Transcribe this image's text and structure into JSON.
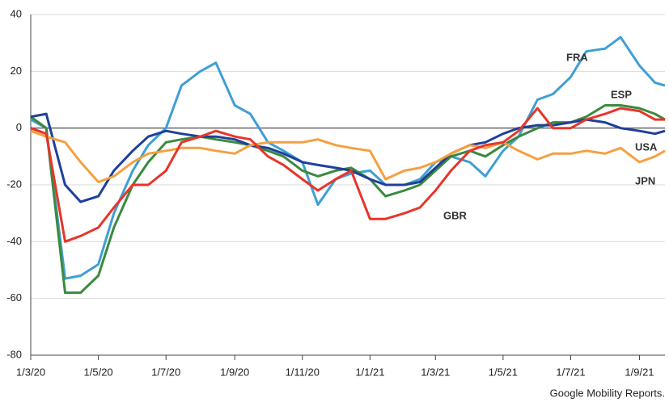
{
  "chart_data": {
    "type": "line",
    "source": "Google Mobility Reports.",
    "x": [
      "1/3/20",
      "15/3/20",
      "1/4/20",
      "15/4/20",
      "1/5/20",
      "15/5/20",
      "1/6/20",
      "15/6/20",
      "1/7/20",
      "15/7/20",
      "1/8/20",
      "15/8/20",
      "1/9/20",
      "15/9/20",
      "1/10/20",
      "15/10/20",
      "1/11/20",
      "15/11/20",
      "1/12/20",
      "15/12/20",
      "1/1/21",
      "15/1/21",
      "1/2/21",
      "15/2/21",
      "1/3/21",
      "15/3/21",
      "1/4/21",
      "15/4/21",
      "1/5/21",
      "15/5/21",
      "1/6/21",
      "15/6/21",
      "1/7/21",
      "15/7/21",
      "1/8/21",
      "15/8/21",
      "1/9/21",
      "15/9/21",
      "24/9/21"
    ],
    "xlim": [
      "1/3/20",
      "24/9/21"
    ],
    "xticks": [
      "1/3/20",
      "1/5/20",
      "1/7/20",
      "1/9/20",
      "1/11/20",
      "1/1/21",
      "1/3/21",
      "1/5/21",
      "1/7/21",
      "1/9/21"
    ],
    "ylim": [
      -80,
      40
    ],
    "yticks": [
      -80,
      -60,
      -40,
      -20,
      0,
      20,
      40
    ],
    "grid": true,
    "series": [
      {
        "name": "FRA",
        "color": "#3f9fd4",
        "values": [
          3,
          0,
          -53,
          -52,
          -48,
          -30,
          -15,
          -6,
          0,
          15,
          20,
          23,
          8,
          5,
          -5,
          -8,
          -12,
          -27,
          -18,
          -16,
          -15,
          -20,
          -20,
          -18,
          -12,
          -10,
          -12,
          -17,
          -8,
          -3,
          10,
          12,
          18,
          27,
          28,
          32,
          22,
          16,
          15
        ]
      },
      {
        "name": "ESP",
        "color": "#3a8a3f",
        "values": [
          4,
          0,
          -58,
          -58,
          -52,
          -35,
          -20,
          -12,
          -5,
          -4,
          -3,
          -4,
          -5,
          -6,
          -8,
          -10,
          -15,
          -17,
          -15,
          -14,
          -18,
          -24,
          -22,
          -20,
          -15,
          -10,
          -8,
          -10,
          -6,
          -3,
          0,
          2,
          2,
          4,
          8,
          8,
          7,
          5,
          3
        ]
      },
      {
        "name": "USA",
        "color": "#1f3f9a",
        "values": [
          4,
          5,
          -20,
          -26,
          -24,
          -15,
          -8,
          -3,
          -1,
          -2,
          -3,
          -3,
          -4,
          -6,
          -7,
          -9,
          -12,
          -13,
          -14,
          -15,
          -18,
          -20,
          -20,
          -19,
          -14,
          -9,
          -6,
          -5,
          -2,
          0,
          1,
          1,
          2,
          3,
          2,
          0,
          -1,
          -2,
          -1
        ]
      },
      {
        "name": "JPN",
        "color": "#f5a040",
        "values": [
          -1,
          -3,
          -5,
          -12,
          -19,
          -17,
          -12,
          -9,
          -8,
          -7,
          -7,
          -8,
          -9,
          -6,
          -5,
          -5,
          -5,
          -4,
          -6,
          -7,
          -8,
          -18,
          -15,
          -14,
          -12,
          -9,
          -6,
          -7,
          -5,
          -8,
          -11,
          -9,
          -9,
          -8,
          -9,
          -7,
          -12,
          -10,
          -8
        ]
      },
      {
        "name": "GBR",
        "color": "#e8352a",
        "values": [
          0,
          -2,
          -40,
          -38,
          -35,
          -28,
          -20,
          -20,
          -15,
          -5,
          -3,
          -1,
          -3,
          -4,
          -10,
          -13,
          -18,
          -22,
          -18,
          -15,
          -32,
          -32,
          -30,
          -28,
          -22,
          -15,
          -8,
          -6,
          -5,
          -1,
          7,
          0,
          0,
          3,
          5,
          7,
          6,
          3,
          3
        ]
      }
    ]
  }
}
